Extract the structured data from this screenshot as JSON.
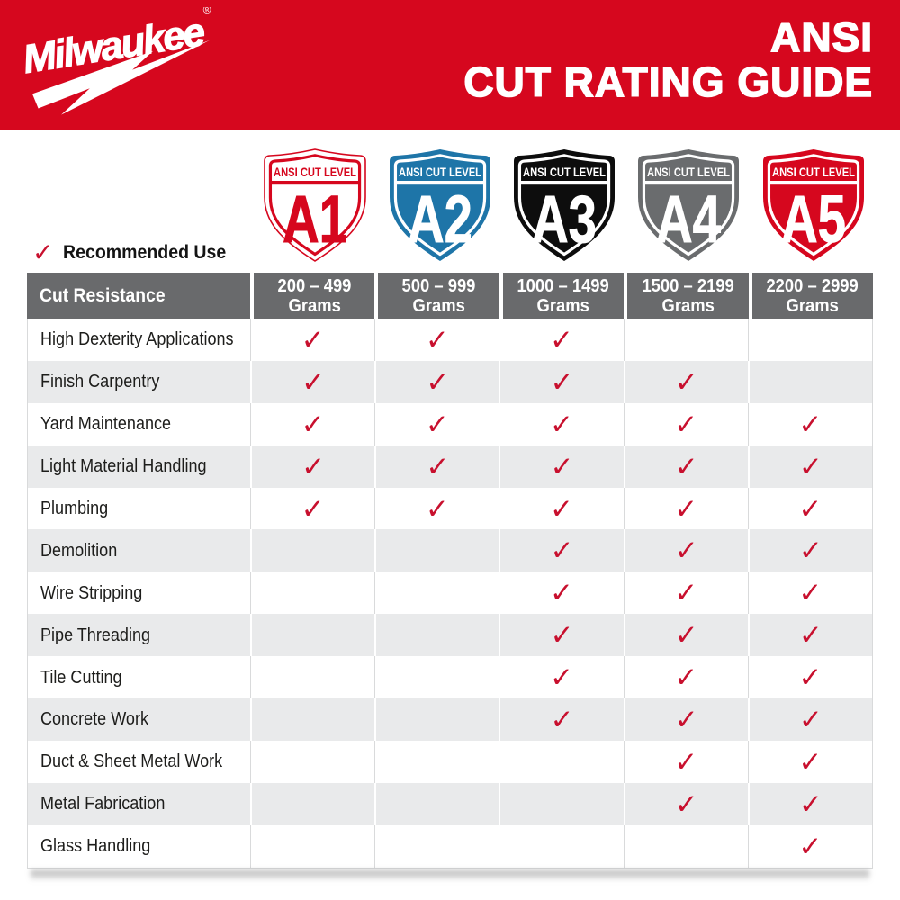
{
  "colors": {
    "brand_red": "#D6071E",
    "check_red": "#C8102E",
    "header_gray": "#696A6C",
    "shield_blue": "#1E75A8",
    "shield_gray": "#6A6C6E",
    "shield_black": "#0D0D0D",
    "alt_row": "#E9EAEB",
    "border": "#D9DADB"
  },
  "header": {
    "logo_text": "Milwaukee",
    "reg_mark": "®",
    "title_line1": "ANSI",
    "title_line2": "CUT RATING GUIDE"
  },
  "legend": {
    "check": "✓",
    "label": "Recommended Use"
  },
  "shields": [
    {
      "level": "A1",
      "banner": "ANSI CUT LEVEL",
      "fill": "#FFFFFF",
      "accent": "#D6071E",
      "edge": "#D6071E"
    },
    {
      "level": "A2",
      "banner": "ANSI CUT LEVEL",
      "fill": "#1E75A8",
      "accent": "#FFFFFF",
      "edge": "none"
    },
    {
      "level": "A3",
      "banner": "ANSI CUT LEVEL",
      "fill": "#0D0D0D",
      "accent": "#FFFFFF",
      "edge": "none"
    },
    {
      "level": "A4",
      "banner": "ANSI CUT LEVEL",
      "fill": "#6A6C6E",
      "accent": "#FFFFFF",
      "edge": "none"
    },
    {
      "level": "A5",
      "banner": "ANSI CUT LEVEL",
      "fill": "#D6071E",
      "accent": "#FFFFFF",
      "edge": "none"
    }
  ],
  "table": {
    "corner_label": "Cut Resistance",
    "check_glyph": "✓",
    "columns": [
      {
        "range": "200 – 499",
        "unit": "Grams"
      },
      {
        "range": "500 – 999",
        "unit": "Grams"
      },
      {
        "range": "1000 – 1499",
        "unit": "Grams"
      },
      {
        "range": "1500 – 2199",
        "unit": "Grams"
      },
      {
        "range": "2200 – 2999",
        "unit": "Grams"
      }
    ],
    "rows": [
      {
        "label": "High Dexterity Applications",
        "checks": [
          1,
          1,
          1,
          0,
          0
        ]
      },
      {
        "label": "Finish Carpentry",
        "checks": [
          1,
          1,
          1,
          1,
          0
        ]
      },
      {
        "label": "Yard Maintenance",
        "checks": [
          1,
          1,
          1,
          1,
          1
        ]
      },
      {
        "label": "Light Material Handling",
        "checks": [
          1,
          1,
          1,
          1,
          1
        ]
      },
      {
        "label": "Plumbing",
        "checks": [
          1,
          1,
          1,
          1,
          1
        ]
      },
      {
        "label": "Demolition",
        "checks": [
          0,
          0,
          1,
          1,
          1
        ]
      },
      {
        "label": "Wire Stripping",
        "checks": [
          0,
          0,
          1,
          1,
          1
        ]
      },
      {
        "label": "Pipe Threading",
        "checks": [
          0,
          0,
          1,
          1,
          1
        ]
      },
      {
        "label": "Tile Cutting",
        "checks": [
          0,
          0,
          1,
          1,
          1
        ]
      },
      {
        "label": "Concrete Work",
        "checks": [
          0,
          0,
          1,
          1,
          1
        ]
      },
      {
        "label": "Duct & Sheet Metal Work",
        "checks": [
          0,
          0,
          0,
          1,
          1
        ]
      },
      {
        "label": "Metal Fabrication",
        "checks": [
          0,
          0,
          0,
          1,
          1
        ]
      },
      {
        "label": "Glass Handling",
        "checks": [
          0,
          0,
          0,
          0,
          1
        ]
      }
    ]
  }
}
